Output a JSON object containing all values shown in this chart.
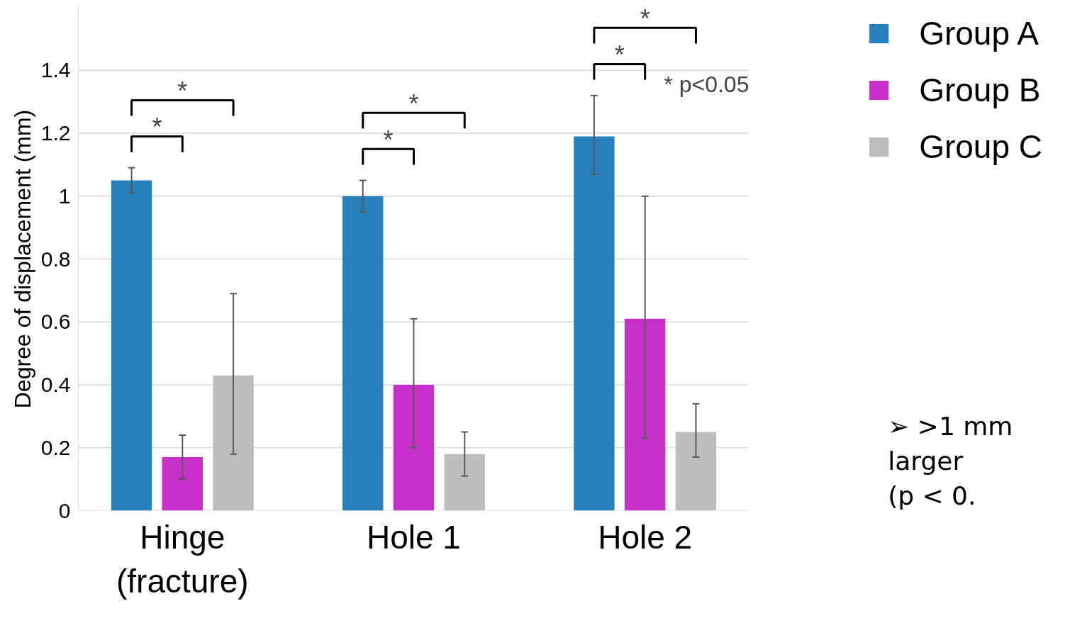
{
  "chart_data": {
    "type": "bar",
    "ylabel": "Degree of displacement (mm)",
    "categories": [
      "Hinge\n(fracture)",
      "Hole 1",
      "Hole 2"
    ],
    "series": [
      {
        "name": "Group A",
        "color": "#2680bb",
        "values": [
          1.05,
          1.0,
          1.19
        ],
        "errors": [
          [
            1.01,
            1.09
          ],
          [
            0.95,
            1.05
          ],
          [
            1.07,
            1.32
          ]
        ]
      },
      {
        "name": "Group B",
        "color": "#c72fc9",
        "values": [
          0.17,
          0.4,
          0.61
        ],
        "errors": [
          [
            0.1,
            0.24
          ],
          [
            0.2,
            0.61
          ],
          [
            0.23,
            1.0
          ]
        ]
      },
      {
        "name": "Group C",
        "color": "#bdbdbd",
        "values": [
          0.43,
          0.18,
          0.25
        ],
        "errors": [
          [
            0.18,
            0.69
          ],
          [
            0.11,
            0.25
          ],
          [
            0.17,
            0.34
          ]
        ]
      }
    ],
    "ylim": [
      0,
      1.6
    ],
    "yticks": [
      0,
      0.2,
      0.4,
      0.6,
      0.8,
      1,
      1.2,
      1.4
    ],
    "grid": "y",
    "legend": "top right",
    "annotations": [
      "*",
      "*",
      "*",
      "*",
      "*",
      "*",
      "* p<0.05",
      "➢ >1 mm\nlarger\n(p < 0."
    ]
  }
}
